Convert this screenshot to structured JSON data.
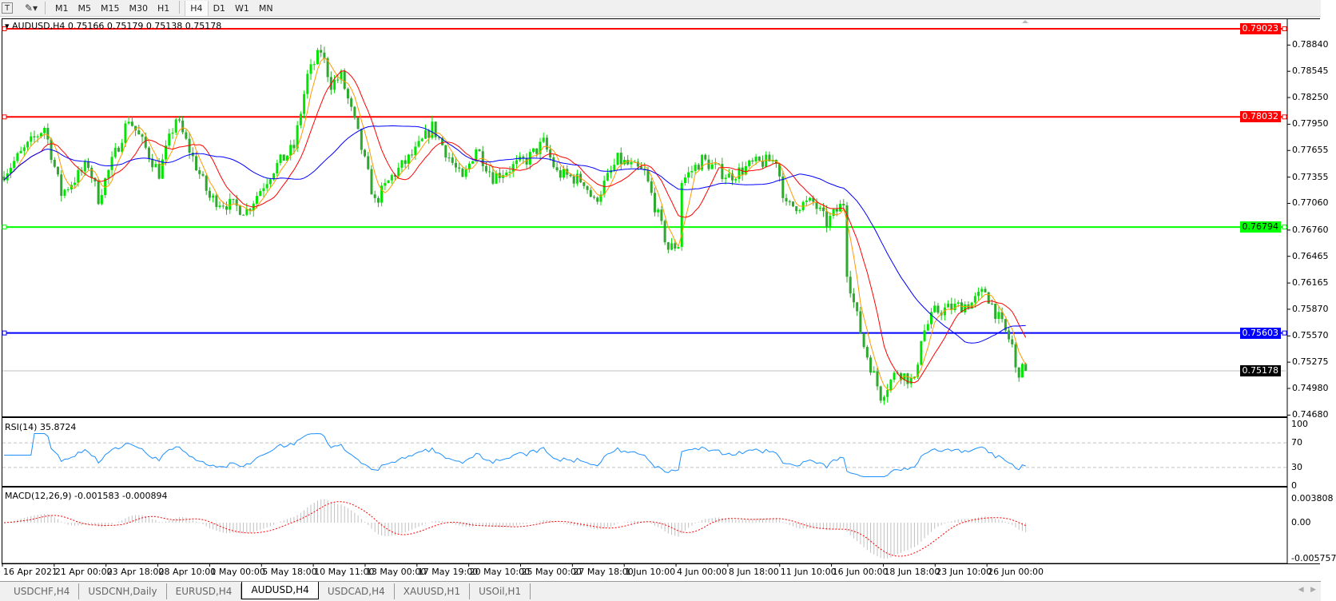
{
  "toolbar": {
    "timeframes": [
      "M1",
      "M5",
      "M15",
      "M30",
      "H1",
      "H4",
      "D1",
      "W1",
      "MN"
    ],
    "active_timeframe": "H4"
  },
  "chart": {
    "title": "AUDUSD,H4  0.75166 0.75179 0.75138 0.75178",
    "symbol": "AUDUSD",
    "timeframe": "H4",
    "ohlc": {
      "open": 0.75166,
      "high": 0.75179,
      "low": 0.75138,
      "close": 0.75178
    },
    "price_axis": [
      "0.78840",
      "0.78545",
      "0.78250",
      "0.77950",
      "0.77655",
      "0.77355",
      "0.77060",
      "0.76760",
      "0.76465",
      "0.76165",
      "0.75870",
      "0.75570",
      "0.75275",
      "0.74980",
      "0.74680"
    ],
    "horizontal_lines": [
      {
        "price": "0.79023",
        "color": "#ff0000"
      },
      {
        "price": "0.78032",
        "color": "#ff0000"
      },
      {
        "price": "0.76794",
        "color": "#00ff00"
      },
      {
        "price": "0.75603",
        "color": "#0000ff"
      }
    ],
    "current_price": "0.75178",
    "candle_colors": {
      "bull": "#00e600",
      "bear": "#2ea82e"
    },
    "ma_colors": {
      "fast": "#ff9900",
      "medium": "#ff0000",
      "slow": "#0000ff"
    },
    "price_path": [
      [
        0,
        0.774
      ],
      [
        12,
        0.7792
      ],
      [
        17,
        0.7717
      ],
      [
        25,
        0.775
      ],
      [
        28,
        0.7712
      ],
      [
        37,
        0.7802
      ],
      [
        46,
        0.774
      ],
      [
        51,
        0.7802
      ],
      [
        61,
        0.7712
      ],
      [
        72,
        0.7698
      ],
      [
        80,
        0.7745
      ],
      [
        86,
        0.7769
      ],
      [
        90,
        0.7849
      ],
      [
        94,
        0.7878
      ],
      [
        97,
        0.784
      ],
      [
        100,
        0.7849
      ],
      [
        105,
        0.7783
      ],
      [
        110,
        0.7707
      ],
      [
        115,
        0.7736
      ],
      [
        122,
        0.7764
      ],
      [
        127,
        0.7792
      ],
      [
        136,
        0.7731
      ],
      [
        140,
        0.7769
      ],
      [
        145,
        0.7736
      ],
      [
        155,
        0.7755
      ],
      [
        160,
        0.7774
      ],
      [
        164,
        0.774
      ],
      [
        172,
        0.7731
      ],
      [
        175,
        0.7707
      ],
      [
        182,
        0.7755
      ],
      [
        190,
        0.774
      ],
      [
        197,
        0.7655
      ],
      [
        200,
        0.766
      ],
      [
        201,
        0.7731
      ],
      [
        207,
        0.7755
      ],
      [
        215,
        0.7736
      ],
      [
        222,
        0.775
      ],
      [
        229,
        0.7755
      ],
      [
        232,
        0.7702
      ],
      [
        240,
        0.7707
      ],
      [
        244,
        0.7684
      ],
      [
        249,
        0.7707
      ],
      [
        250,
        0.7631
      ],
      [
        252,
        0.7594
      ],
      [
        255,
        0.7546
      ],
      [
        260,
        0.749
      ],
      [
        265,
        0.7518
      ],
      [
        270,
        0.7504
      ],
      [
        272,
        0.7556
      ],
      [
        276,
        0.7584
      ],
      [
        287,
        0.7594
      ],
      [
        291,
        0.7608
      ],
      [
        294,
        0.7584
      ],
      [
        299,
        0.7546
      ],
      [
        300,
        0.7518
      ],
      [
        303,
        0.75178
      ]
    ]
  },
  "rsi": {
    "label": "RSI(14) 35.8724",
    "levels": [
      "100",
      "70",
      "30",
      "0"
    ],
    "color": "#1e90ff"
  },
  "macd": {
    "label": "MACD(12,26,9) -0.001583 -0.000894",
    "levels": [
      "0.003808",
      "0.00",
      "-0.005757"
    ],
    "signal_color": "#ff0000",
    "histogram_color": "#c0c0c0"
  },
  "time_axis": [
    "16 Apr 2021",
    "21 Apr 00:00",
    "23 Apr 18:00",
    "28 Apr 10:00",
    "1 May 00:00",
    "5 May 18:00",
    "10 May 11:00",
    "13 May 00:00",
    "17 May 19:00",
    "20 May 10:00",
    "25 May 00:00",
    "27 May 18:00",
    "1 Jun 10:00",
    "4 Jun 00:00",
    "8 Jun 18:00",
    "11 Jun 10:00",
    "16 Jun 00:00",
    "18 Jun 18:00",
    "23 Jun 10:00",
    "26 Jun 00:00"
  ],
  "tabs": [
    {
      "label": "USDCHF,H4"
    },
    {
      "label": "USDCNH,Daily"
    },
    {
      "label": "EURUSD,H4"
    },
    {
      "label": "AUDUSD,H4",
      "active": true
    },
    {
      "label": "USDCAD,H4"
    },
    {
      "label": "XAUUSD,H1"
    },
    {
      "label": "USOil,H1"
    }
  ]
}
